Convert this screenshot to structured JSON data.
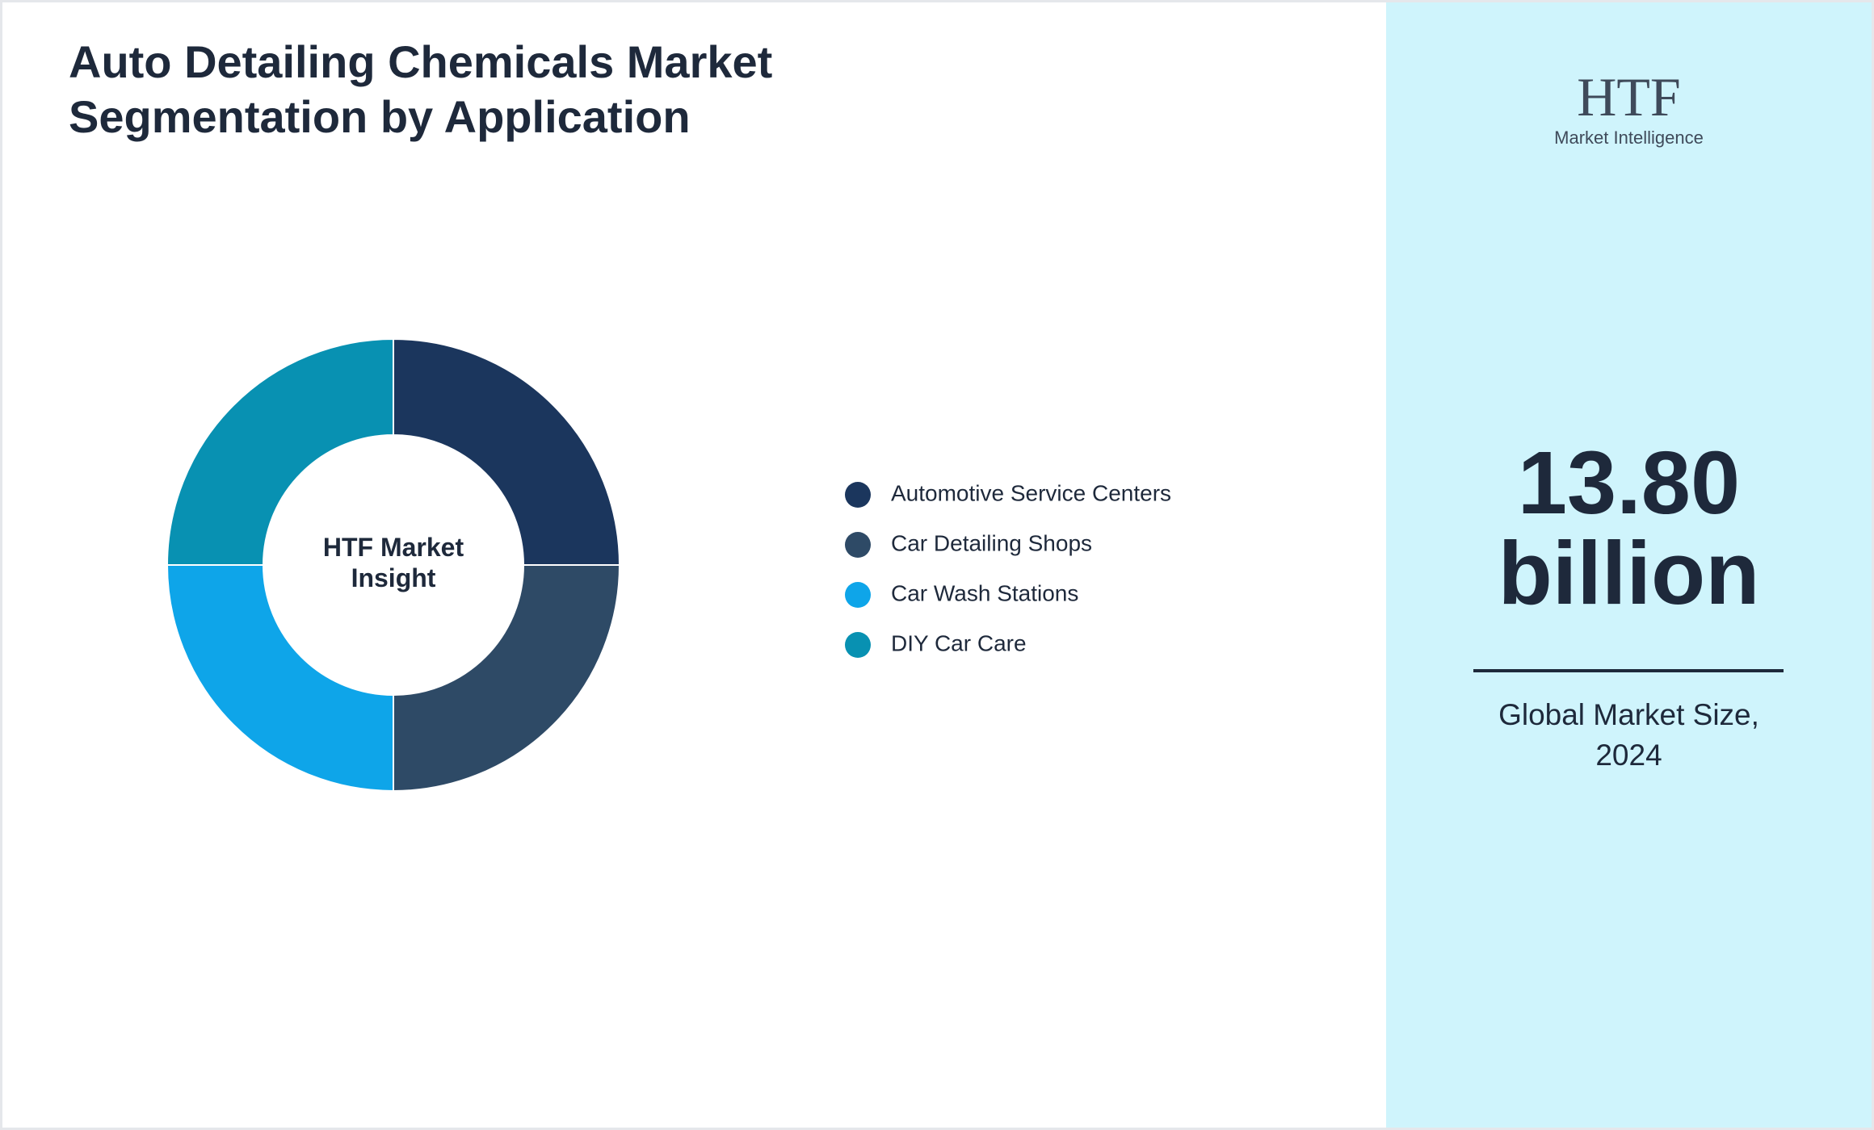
{
  "chart_data": {
    "type": "pie",
    "title": "Auto Detailing Chemicals Market Segmentation by Application",
    "center_label": "HTF Market Insight",
    "categories": [
      "Automotive Service Centers",
      "Car Detailing Shops",
      "Car Wash Stations",
      "DIY Car Care"
    ],
    "values": [
      25,
      25,
      25,
      25
    ],
    "colors": [
      "#1b365d",
      "#2e4a66",
      "#0ea5e9",
      "#0891b2"
    ]
  },
  "side_panel": {
    "logo_text": "HTF",
    "logo_subtext": "Market Intelligence",
    "market_size": "13.80 billion",
    "caption": "Global Market Size, 2024"
  }
}
